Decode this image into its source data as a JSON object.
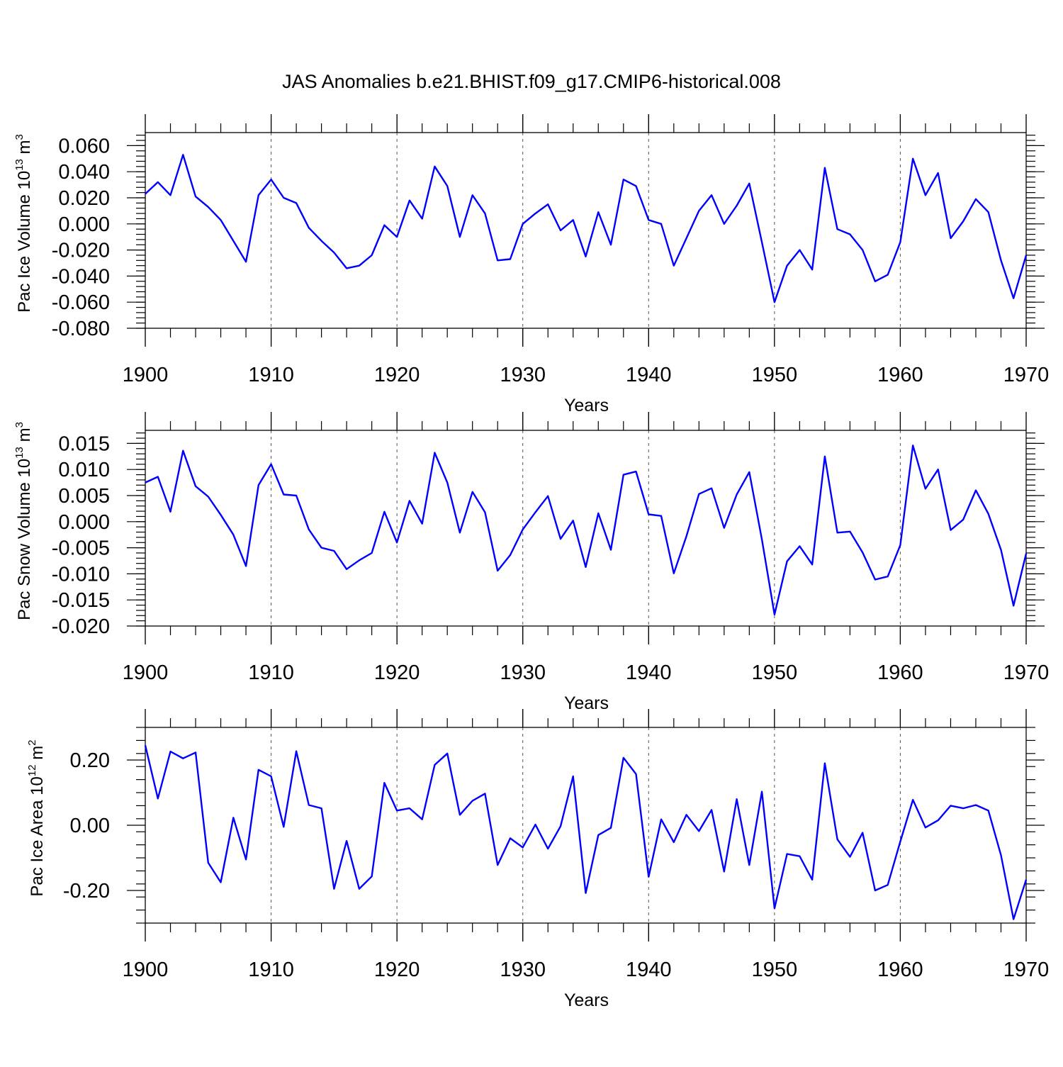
{
  "title": "JAS Anomalies b.e21.BHIST.f09_g17.CMIP6-historical.008",
  "colors": {
    "line": "#0000ff",
    "axes": "#000000",
    "grid": "#555555"
  },
  "chart_data": [
    {
      "type": "line",
      "name": "ice-volume",
      "ylabel": "Pac Ice Volume 10",
      "ylabel_exp": "13",
      "ylabel_unit": " m",
      "ylabel_unit_exp": "3",
      "xlabel": "Years",
      "xlim": [
        1900,
        1970
      ],
      "ylim": [
        -0.08,
        0.07
      ],
      "xticks": [
        "1900",
        "1910",
        "1920",
        "1930",
        "1940",
        "1950",
        "1960",
        "1970"
      ],
      "yticks": [
        {
          "v": 0.06,
          "label": "0.060"
        },
        {
          "v": 0.04,
          "label": "0.040"
        },
        {
          "v": 0.02,
          "label": "0.020"
        },
        {
          "v": 0.0,
          "label": "0.000"
        },
        {
          "v": -0.02,
          "label": "-0.020"
        },
        {
          "v": -0.04,
          "label": "-0.040"
        },
        {
          "v": -0.06,
          "label": "-0.060"
        },
        {
          "v": -0.08,
          "label": "-0.080"
        }
      ],
      "x_start": 1900,
      "values": [
        0.023,
        0.032,
        0.022,
        0.053,
        0.021,
        0.013,
        0.003,
        -0.013,
        -0.029,
        0.022,
        0.034,
        0.02,
        0.016,
        -0.003,
        -0.013,
        -0.022,
        -0.034,
        -0.032,
        -0.024,
        -0.001,
        -0.01,
        0.018,
        0.004,
        0.044,
        0.029,
        -0.01,
        0.022,
        0.008,
        -0.028,
        -0.027,
        0.0,
        0.008,
        0.015,
        -0.005,
        0.003,
        -0.025,
        0.009,
        -0.016,
        0.034,
        0.029,
        0.003,
        0.0,
        -0.032,
        -0.011,
        0.01,
        0.022,
        0.0,
        0.014,
        0.031,
        -0.014,
        -0.06,
        -0.032,
        -0.02,
        -0.035,
        0.043,
        -0.004,
        -0.008,
        -0.02,
        -0.044,
        -0.039,
        -0.014,
        0.05,
        0.022,
        0.039,
        -0.011,
        0.002,
        0.019,
        0.009,
        -0.028,
        -0.057,
        -0.024
      ]
    },
    {
      "type": "line",
      "name": "snow-volume",
      "ylabel": "Pac Snow Volume 10",
      "ylabel_exp": "13",
      "ylabel_unit": " m",
      "ylabel_unit_exp": "3",
      "xlabel": "Years",
      "xlim": [
        1900,
        1970
      ],
      "ylim": [
        -0.02,
        0.0175
      ],
      "xticks": [
        "1900",
        "1910",
        "1920",
        "1930",
        "1940",
        "1950",
        "1960",
        "1970"
      ],
      "yticks": [
        {
          "v": 0.015,
          "label": "0.015"
        },
        {
          "v": 0.01,
          "label": "0.010"
        },
        {
          "v": 0.005,
          "label": "0.005"
        },
        {
          "v": 0.0,
          "label": "0.000"
        },
        {
          "v": -0.005,
          "label": "-0.005"
        },
        {
          "v": -0.01,
          "label": "-0.010"
        },
        {
          "v": -0.015,
          "label": "-0.015"
        },
        {
          "v": -0.02,
          "label": "-0.020"
        }
      ],
      "x_start": 1900,
      "values": [
        0.0075,
        0.0086,
        0.0019,
        0.0136,
        0.0068,
        0.0048,
        0.0013,
        -0.0025,
        -0.0085,
        0.007,
        0.011,
        0.0052,
        0.005,
        -0.0015,
        -0.005,
        -0.0056,
        -0.0091,
        -0.0074,
        -0.006,
        0.0019,
        -0.004,
        0.004,
        -0.0004,
        0.0132,
        0.0075,
        -0.0021,
        0.0057,
        0.0018,
        -0.0094,
        -0.0064,
        -0.0015,
        0.0018,
        0.0049,
        -0.0033,
        0.0002,
        -0.0087,
        0.0016,
        -0.0054,
        0.009,
        0.0096,
        0.0014,
        0.0011,
        -0.0099,
        -0.0028,
        0.0053,
        0.0064,
        -0.0012,
        0.0052,
        0.0095,
        -0.0034,
        -0.0178,
        -0.0076,
        -0.0047,
        -0.0082,
        0.0125,
        -0.0021,
        -0.0019,
        -0.0059,
        -0.0111,
        -0.0105,
        -0.0045,
        0.0146,
        0.0063,
        0.01,
        -0.0016,
        0.0004,
        0.006,
        0.0015,
        -0.0054,
        -0.0161,
        -0.0061
      ]
    },
    {
      "type": "line",
      "name": "ice-area",
      "ylabel": "Pac Ice Area 10",
      "ylabel_exp": "12",
      "ylabel_unit": " m",
      "ylabel_unit_exp": "2",
      "xlabel": "Years",
      "xlim": [
        1900,
        1970
      ],
      "ylim": [
        -0.3,
        0.3
      ],
      "xticks": [
        "1900",
        "1910",
        "1920",
        "1930",
        "1940",
        "1950",
        "1960",
        "1970"
      ],
      "yticks": [
        {
          "v": 0.2,
          "label": "0.20"
        },
        {
          "v": 0.0,
          "label": "0.00"
        },
        {
          "v": -0.2,
          "label": "-0.20"
        }
      ],
      "x_start": 1900,
      "values": [
        0.245,
        0.082,
        0.226,
        0.205,
        0.223,
        -0.115,
        -0.175,
        0.023,
        -0.105,
        0.17,
        0.15,
        -0.005,
        0.227,
        0.062,
        0.052,
        -0.195,
        -0.048,
        -0.195,
        -0.157,
        0.13,
        0.045,
        0.052,
        0.018,
        0.185,
        0.22,
        0.032,
        0.075,
        0.097,
        -0.122,
        -0.04,
        -0.068,
        0.002,
        -0.072,
        -0.003,
        0.15,
        -0.208,
        -0.03,
        -0.008,
        0.207,
        0.157,
        -0.158,
        0.018,
        -0.052,
        0.032,
        -0.018,
        0.047,
        -0.142,
        0.08,
        -0.122,
        0.103,
        -0.255,
        -0.088,
        -0.095,
        -0.167,
        0.19,
        -0.043,
        -0.097,
        -0.023,
        -0.2,
        -0.183,
        -0.05,
        0.078,
        -0.007,
        0.015,
        0.06,
        0.052,
        0.062,
        0.045,
        -0.092,
        -0.288,
        -0.167
      ]
    }
  ]
}
